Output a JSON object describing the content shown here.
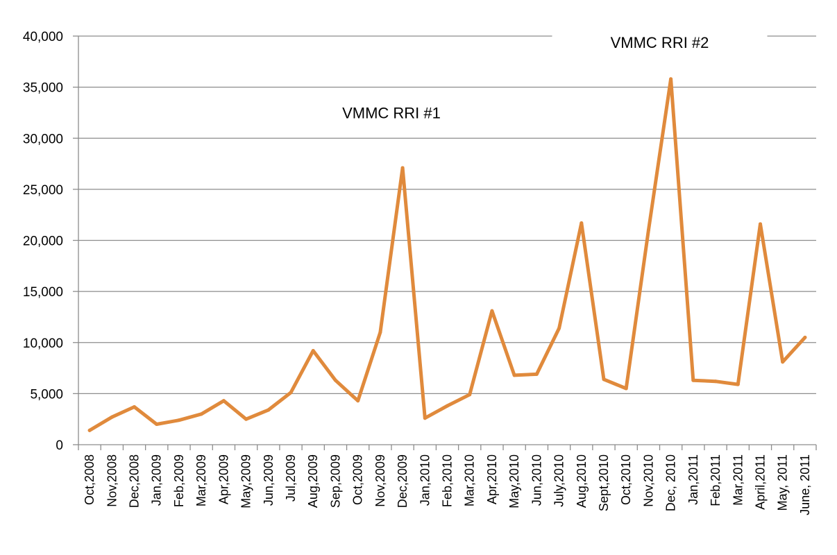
{
  "chart_data": {
    "type": "line",
    "title": "",
    "xlabel": "",
    "ylabel": "",
    "ylim": [
      0,
      40000
    ],
    "yticks": [
      0,
      5000,
      10000,
      15000,
      20000,
      25000,
      30000,
      35000,
      40000
    ],
    "ytick_labels": [
      "0",
      "5,000",
      "10,000",
      "15,000",
      "20,000",
      "25,000",
      "30,000",
      "35,000",
      "40,000"
    ],
    "grid": true,
    "line_color": "#E08A3C",
    "categories": [
      "Oct,2008",
      "Nov,2008",
      "Dec,2008",
      "Jan,2009",
      "Feb,2009",
      "Mar,2009",
      "Apr,2009",
      "May,2009",
      "Jun,2009",
      "Jul,2009",
      "Aug,2009",
      "Sep,2009",
      "Oct,2009",
      "Nov,2009",
      "Dec,2009",
      "Jan,2010",
      "Feb,2010",
      "Mar,2010",
      "Apr,2010",
      "May,2010",
      "Jun,2010",
      "July,2010",
      "Aug,2010",
      "Sept,2010",
      "Oct,2010",
      "Nov,2010",
      "Dec, 2010",
      "Jan,2011",
      "Feb,2011",
      "Mar,2011",
      "April,2011",
      "May, 2011",
      "June, 2011"
    ],
    "values": [
      1400,
      2700,
      3700,
      2000,
      2400,
      3000,
      4300,
      2500,
      3400,
      5100,
      9200,
      6300,
      4300,
      11000,
      27100,
      2600,
      3800,
      4900,
      13100,
      6800,
      6900,
      11400,
      21700,
      6400,
      5500,
      21000,
      35800,
      6300,
      6200,
      5900,
      21600,
      8100,
      10500
    ],
    "annotations": [
      {
        "text": "VMMC RRI #1",
        "x_index": 13.5,
        "y": 32500
      },
      {
        "text": "VMMC RRI #2",
        "x_index": 25.5,
        "y": 39400
      }
    ]
  }
}
